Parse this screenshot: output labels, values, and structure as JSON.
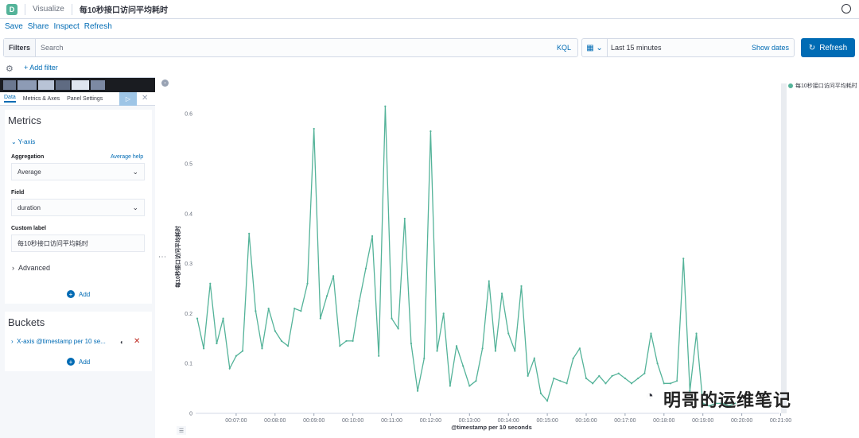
{
  "header": {
    "logo_letter": "D",
    "app": "Visualize",
    "title": "每10秒接口访问平均耗时"
  },
  "menu": [
    "Save",
    "Share",
    "Inspect",
    "Refresh"
  ],
  "query": {
    "filters_label": "Filters",
    "placeholder": "Search",
    "language": "KQL"
  },
  "time": {
    "range": "Last 15 minutes",
    "show_dates": "Show dates",
    "refresh": "Refresh"
  },
  "add_filter": "+ Add filter",
  "tabs": [
    "Data",
    "Metrics & Axes",
    "Panel Settings"
  ],
  "metrics": {
    "heading": "Metrics",
    "yaxis_label": "Y-axis",
    "aggregation_label": "Aggregation",
    "aggregation_help": "Average help",
    "aggregation_value": "Average",
    "field_label": "Field",
    "field_value": "duration",
    "custom_label_label": "Custom label",
    "custom_label_value": "每10秒接口访问平均耗时",
    "advanced": "Advanced",
    "add": "Add"
  },
  "buckets": {
    "heading": "Buckets",
    "xaxis": "X-axis @timestamp per 10 se...",
    "add": "Add"
  },
  "watermark": "明哥的运维笔记",
  "chart_data": {
    "type": "line",
    "ylabel": "每10秒接口访问平均耗时",
    "xlabel": "@timestamp per 10 seconds",
    "legend": "每10秒接口访问平均耗时",
    "color": "#54b399",
    "ylim": [
      0,
      0.64
    ],
    "yticks": [
      0,
      0.1,
      0.2,
      0.3,
      0.4,
      0.5,
      0.6
    ],
    "xticks": [
      "00:07:00",
      "00:08:00",
      "00:09:00",
      "00:10:00",
      "00:11:00",
      "00:12:00",
      "00:13:00",
      "00:14:00",
      "00:15:00",
      "00:16:00",
      "00:17:00",
      "00:18:00",
      "00:19:00",
      "00:20:00",
      "00:21:00"
    ],
    "x_tick_index": [
      6,
      12,
      18,
      24,
      30,
      36,
      42,
      48,
      54,
      60,
      66,
      72,
      78,
      84,
      90
    ],
    "values": [
      0.19,
      0.13,
      0.26,
      0.14,
      0.19,
      0.09,
      0.115,
      0.125,
      0.36,
      0.205,
      0.13,
      0.21,
      0.165,
      0.145,
      0.135,
      0.21,
      0.205,
      0.26,
      0.57,
      0.19,
      0.235,
      0.275,
      0.135,
      0.145,
      0.145,
      0.225,
      0.29,
      0.355,
      0.115,
      0.615,
      0.19,
      0.17,
      0.39,
      0.14,
      0.045,
      0.11,
      0.565,
      0.125,
      0.2,
      0.055,
      0.135,
      0.095,
      0.055,
      0.065,
      0.13,
      0.265,
      0.125,
      0.24,
      0.16,
      0.125,
      0.255,
      0.075,
      0.11,
      0.04,
      0.025,
      0.07,
      0.065,
      0.06,
      0.11,
      0.13,
      0.07,
      0.06,
      0.075,
      0.06,
      0.075,
      0.08,
      0.07,
      0.06,
      0.07,
      0.08,
      0.16,
      0.1,
      0.06,
      0.06,
      0.065,
      0.31,
      0.045,
      0.16,
      0.02,
      0.015,
      0.02,
      0.02,
      0.015,
      0.02
    ]
  }
}
